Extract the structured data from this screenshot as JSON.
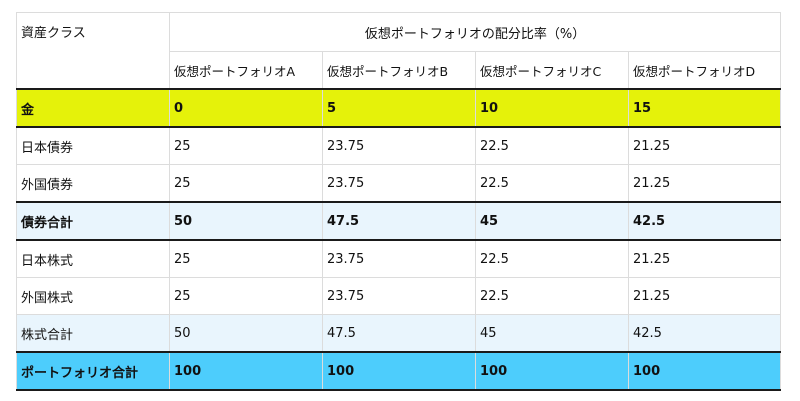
{
  "table": {
    "corner_header": "資産クラス",
    "group_header": "仮想ポートフォリオの配分比率（%）",
    "columns": [
      "仮想ポートフォリオA",
      "仮想ポートフォリオB",
      "仮想ポートフォリオC",
      "仮想ポートフォリオD"
    ],
    "rows": [
      {
        "label": "金",
        "values": [
          "0",
          "5",
          "10",
          "15"
        ]
      },
      {
        "label": "日本債券",
        "values": [
          "25",
          "23.75",
          "22.5",
          "21.25"
        ]
      },
      {
        "label": "外国債券",
        "values": [
          "25",
          "23.75",
          "22.5",
          "21.25"
        ]
      },
      {
        "label": "債券合計",
        "values": [
          "50",
          "47.5",
          "45",
          "42.5"
        ]
      },
      {
        "label": "日本株式",
        "values": [
          "25",
          "23.75",
          "22.5",
          "21.25"
        ]
      },
      {
        "label": "外国株式",
        "values": [
          "25",
          "23.75",
          "22.5",
          "21.25"
        ]
      },
      {
        "label": "株式合計",
        "values": [
          "50",
          "47.5",
          "45",
          "42.5"
        ]
      },
      {
        "label": "ポートフォリオ合計",
        "values": [
          "100",
          "100",
          "100",
          "100"
        ]
      }
    ]
  },
  "colors": {
    "gold_row": "#e5f20a",
    "subtotal_row": "#e9f5fd",
    "total_row": "#4dcdfc",
    "grid_line": "#dcdcdc",
    "rule_line": "#1a1a1a"
  }
}
